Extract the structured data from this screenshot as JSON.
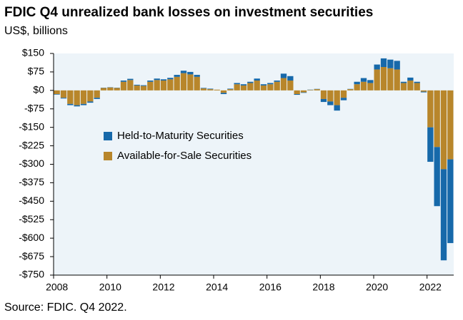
{
  "chart_data": {
    "type": "stacked_bar",
    "title": "FDIC Q4 unrealized bank losses on investment securities",
    "subtitle": "US$, billions",
    "source": "Source: FDIC. Q4 2022.",
    "categories": [
      "2008",
      null,
      null,
      null,
      null,
      null,
      null,
      null,
      "2010",
      null,
      null,
      null,
      null,
      null,
      null,
      null,
      "2012",
      null,
      null,
      null,
      null,
      null,
      null,
      null,
      "2014",
      null,
      null,
      null,
      null,
      null,
      null,
      null,
      "2016",
      null,
      null,
      null,
      null,
      null,
      null,
      null,
      "2018",
      null,
      null,
      null,
      null,
      null,
      null,
      null,
      "2020",
      null,
      null,
      null,
      null,
      null,
      null,
      null,
      "2022",
      null,
      null,
      null
    ],
    "series": [
      {
        "name": "Available-for-Sale Securities",
        "color": "#b8862b",
        "values": [
          -15,
          -30,
          -55,
          -60,
          -55,
          -45,
          -30,
          10,
          12,
          10,
          35,
          42,
          20,
          18,
          35,
          42,
          40,
          45,
          55,
          70,
          65,
          55,
          8,
          5,
          3,
          -10,
          5,
          25,
          20,
          30,
          40,
          20,
          25,
          35,
          50,
          40,
          -15,
          -8,
          2,
          5,
          -35,
          -45,
          -60,
          -30,
          5,
          25,
          35,
          30,
          85,
          95,
          90,
          85,
          30,
          40,
          30,
          -5,
          -150,
          -230,
          -320,
          -280
        ]
      },
      {
        "name": "Held-to-Maturity Securities",
        "color": "#1769aa",
        "values": [
          -2,
          -3,
          -5,
          -5,
          -5,
          -5,
          -5,
          1,
          1,
          1,
          5,
          5,
          3,
          3,
          5,
          6,
          5,
          6,
          8,
          10,
          10,
          8,
          2,
          2,
          0,
          -5,
          2,
          5,
          5,
          5,
          8,
          5,
          5,
          5,
          18,
          18,
          -3,
          -2,
          1,
          1,
          -12,
          -15,
          -22,
          -10,
          1,
          10,
          15,
          12,
          20,
          35,
          35,
          35,
          5,
          12,
          5,
          -3,
          -140,
          -240,
          -370,
          -340
        ]
      }
    ],
    "ylim": [
      -750,
      150
    ],
    "yticks": [
      {
        "value": 150,
        "label": "$150"
      },
      {
        "value": 75,
        "label": "$75"
      },
      {
        "value": 0,
        "label": "$0"
      },
      {
        "value": -75,
        "label": "-$75"
      },
      {
        "value": -150,
        "label": "-$150"
      },
      {
        "value": -225,
        "label": "-$225"
      },
      {
        "value": -300,
        "label": "-$300"
      },
      {
        "value": -375,
        "label": "-$375"
      },
      {
        "value": -450,
        "label": "-$450"
      },
      {
        "value": -525,
        "label": "-$525"
      },
      {
        "value": -600,
        "label": "-$600"
      },
      {
        "value": -675,
        "label": "-$675"
      },
      {
        "value": -750,
        "label": "-$750"
      }
    ],
    "grid": false
  }
}
